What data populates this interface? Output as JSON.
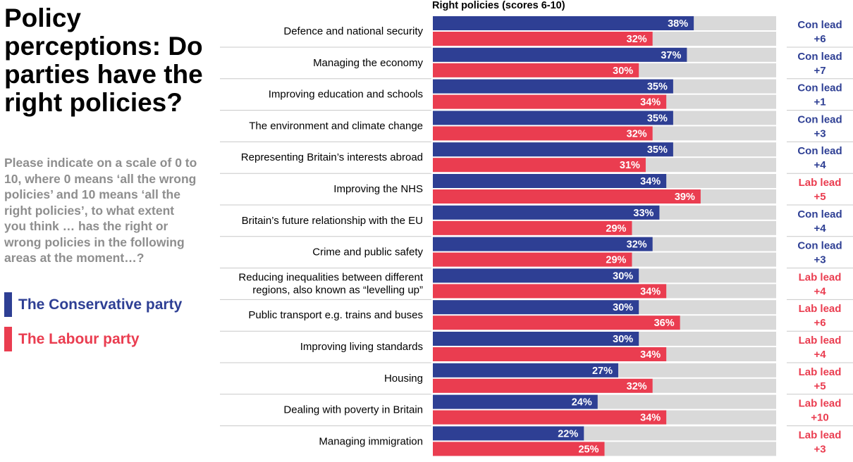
{
  "title": "Policy perceptions: Do parties have the right policies?",
  "subtitle": "Please indicate on a scale of 0 to 10, where 0 means ‘all the wrong policies’ and 10 means ‘all the right policies’, to what extent you think … has the right or wrong policies in the following areas at the moment…?",
  "legend": [
    {
      "label": "The Conservative party",
      "color": "#2e3f94"
    },
    {
      "label": "The Labour party",
      "color": "#ea3d50"
    }
  ],
  "chart_data": {
    "type": "bar",
    "orientation": "horizontal",
    "title": "Right policies (scores 6-10)",
    "xlim": [
      0,
      50
    ],
    "categories": [
      [
        "Defence and national security"
      ],
      [
        "Managing the economy"
      ],
      [
        "Improving education and schools"
      ],
      [
        "The environment and climate change"
      ],
      [
        "Representing Britain’s interests abroad"
      ],
      [
        "Improving the NHS"
      ],
      [
        "Britain’s future relationship with the EU"
      ],
      [
        "Crime and public safety"
      ],
      [
        "Reducing inequalities between different",
        "regions, also known as “levelling up”"
      ],
      [
        "Public transport e.g. trains and buses"
      ],
      [
        "Improving living standards"
      ],
      [
        "Housing"
      ],
      [
        "Dealing with poverty in Britain"
      ],
      [
        "Managing immigration"
      ]
    ],
    "series": [
      {
        "name": "The Conservative party",
        "color": "#2e3f94",
        "values": [
          38,
          37,
          35,
          35,
          35,
          34,
          33,
          32,
          30,
          30,
          30,
          27,
          24,
          22
        ]
      },
      {
        "name": "The Labour party",
        "color": "#ea3d50",
        "values": [
          32,
          30,
          34,
          32,
          31,
          39,
          29,
          29,
          34,
          36,
          34,
          32,
          34,
          25
        ]
      }
    ],
    "leads": [
      {
        "party": "Con lead",
        "margin": "+6"
      },
      {
        "party": "Con lead",
        "margin": "+7"
      },
      {
        "party": "Con lead",
        "margin": "+1"
      },
      {
        "party": "Con lead",
        "margin": "+3"
      },
      {
        "party": "Con lead",
        "margin": "+4"
      },
      {
        "party": "Lab lead",
        "margin": "+5"
      },
      {
        "party": "Con lead",
        "margin": "+4"
      },
      {
        "party": "Con lead",
        "margin": "+3"
      },
      {
        "party": "Lab lead",
        "margin": "+4"
      },
      {
        "party": "Lab lead",
        "margin": "+6"
      },
      {
        "party": "Lab lead",
        "margin": "+4"
      },
      {
        "party": "Lab lead",
        "margin": "+5"
      },
      {
        "party": "Lab lead",
        "margin": "+10"
      },
      {
        "party": "Lab lead",
        "margin": "+3"
      }
    ],
    "colors": {
      "conservative": "#2e3f94",
      "labour": "#ea3d50",
      "background_track": "#d9d9d9",
      "divider": "#c8c8c8"
    }
  }
}
